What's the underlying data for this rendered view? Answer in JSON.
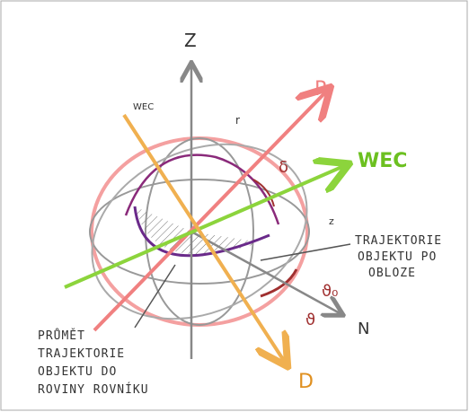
{
  "labels": {
    "z_axis": "Z",
    "wec_small": "WEC",
    "r": "r",
    "p_axis": "P",
    "wec_axis": "WEC",
    "delta": "δ",
    "z_small": "z",
    "trajectory_note": [
      "TRAJEKTORIE",
      "OBJEKTU PO",
      "OBLOZE"
    ],
    "theta0": "ϑ₀",
    "theta": "ϑ",
    "n_axis": "N",
    "projection_note": [
      "PRŮMĚT",
      "TRAJEKTORIE",
      "OBJEKTU DO",
      "ROVINY ROVNÍKU"
    ],
    "d_axis": "D"
  }
}
